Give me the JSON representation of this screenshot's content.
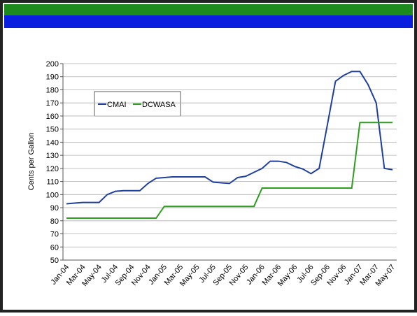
{
  "chart_data": {
    "type": "line",
    "ylabel": "Cents per Gallon",
    "categories": [
      "Jan-04",
      null,
      "Mar-04",
      null,
      "May-04",
      null,
      "Jul-04",
      null,
      "Sep-04",
      null,
      "Nov-04",
      null,
      "Jan-05",
      null,
      "Mar-05",
      null,
      "May-05",
      null,
      "Jul-05",
      null,
      "Sep-05",
      null,
      "Nov-05",
      null,
      "Jan-06",
      null,
      "Mar-06",
      null,
      "May-06",
      null,
      "Jul-06",
      null,
      "Sep-06",
      null,
      "Nov-06",
      null,
      "Jan-07",
      null,
      "Mar-07",
      null,
      "May-07"
    ],
    "series": [
      {
        "name": "CMAI",
        "color": "#1f3f9f",
        "values": [
          93,
          93.5,
          94,
          94,
          94,
          100,
          102.5,
          103,
          103,
          103,
          108.5,
          112.5,
          113,
          113.5,
          113.5,
          113.5,
          113.5,
          113.5,
          109.5,
          109,
          108.5,
          113,
          114,
          117,
          120,
          125.5,
          125.5,
          124.5,
          121.5,
          119.5,
          116,
          120,
          153,
          186.5,
          191,
          194,
          194,
          184,
          170,
          120,
          119
        ]
      },
      {
        "name": "DCWASA",
        "color": "#2e9e1e",
        "values": [
          82,
          82,
          82,
          82,
          82,
          82,
          82,
          82,
          82,
          82,
          82,
          82,
          91,
          91,
          91,
          91,
          91,
          91,
          91,
          91,
          91,
          91,
          91,
          91,
          105,
          105,
          105,
          105,
          105,
          105,
          105,
          105,
          105,
          105,
          105,
          105,
          155,
          155,
          155,
          155,
          155
        ]
      }
    ],
    "ylim": [
      50,
      200
    ],
    "yticks": [
      50,
      60,
      70,
      80,
      90,
      100,
      110,
      120,
      130,
      140,
      150,
      160,
      170,
      180,
      190,
      200
    ],
    "grid": true
  }
}
